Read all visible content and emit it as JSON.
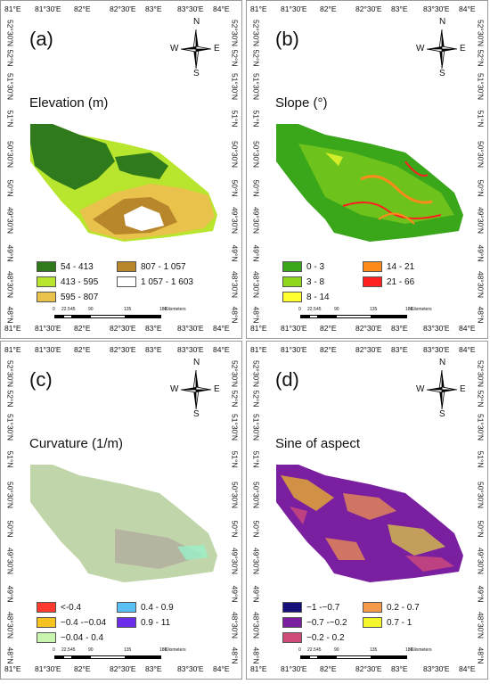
{
  "axes": {
    "top_x": [
      "81°E",
      "81°30'E",
      "82°E",
      "82°30'E",
      "83°E",
      "83°30'E",
      "84°E"
    ],
    "bottom_x": [
      "81°E",
      "81°30'E",
      "82°E",
      "82°30'E",
      "83°E",
      "83°30'E",
      "84°E"
    ],
    "left_y": [
      "52°30'N",
      "52°N",
      "51°30'N",
      "51°N",
      "50°30'N",
      "50°N",
      "49°30'N",
      "49°N",
      "48°30'N",
      "48°N"
    ],
    "right_y": [
      "52°30'N",
      "52°N",
      "51°30'N",
      "51°N",
      "50°30'N",
      "50°N",
      "49°30'N",
      "49°N",
      "48°30'N",
      "48°N"
    ]
  },
  "compass": {
    "n": "N",
    "s": "S",
    "e": "E",
    "w": "W"
  },
  "scale": {
    "ticks": [
      "0",
      "22.5",
      "45",
      "90",
      "135",
      "180"
    ],
    "unit": "Kilometers"
  },
  "panels": [
    {
      "label": "(a)",
      "title": "Elevation (m)",
      "legend": [
        {
          "label": "54 - 413",
          "color": "#2e7a1c"
        },
        {
          "label": "807 - 1 057",
          "color": "#b8862b"
        },
        {
          "label": "413 - 595",
          "color": "#b8e62e"
        },
        {
          "label": "1 057 - 1 603",
          "color": "#ffffff"
        },
        {
          "label": "595 - 807",
          "color": "#e8c24a"
        }
      ]
    },
    {
      "label": "(b)",
      "title": "Slope (°)",
      "legend": [
        {
          "label": "0 - 3",
          "color": "#3aa61a"
        },
        {
          "label": "14 - 21",
          "color": "#ff8a1c"
        },
        {
          "label": "3 - 8",
          "color": "#8fd61c"
        },
        {
          "label": "21 - 66",
          "color": "#ff1f1f"
        },
        {
          "label": "8 - 14",
          "color": "#ffff2e"
        }
      ]
    },
    {
      "label": "(c)",
      "title": "Curvature (1/m)",
      "legend": [
        {
          "label": "<-0.4",
          "color": "#ff3a2e"
        },
        {
          "label": "0.4 - 0.9",
          "color": "#5ac0f5"
        },
        {
          "label": "−0.4 -−0.04",
          "color": "#f5c21f"
        },
        {
          "label": "0.9 - 11",
          "color": "#6a2ee8"
        },
        {
          "label": "−0.04 - 0.4",
          "color": "#c8f5b0"
        }
      ]
    },
    {
      "label": "(d)",
      "title": "Sine of aspect",
      "legend": [
        {
          "label": "−1 -−0.7",
          "color": "#15107a"
        },
        {
          "label": "0.2 - 0.7",
          "color": "#f59a4a"
        },
        {
          "label": "−0.7 -−0.2",
          "color": "#7a1fa0"
        },
        {
          "label": "0.7 - 1",
          "color": "#f5f52e"
        },
        {
          "label": "−0.2 - 0.2",
          "color": "#d04a7a"
        }
      ]
    }
  ]
}
